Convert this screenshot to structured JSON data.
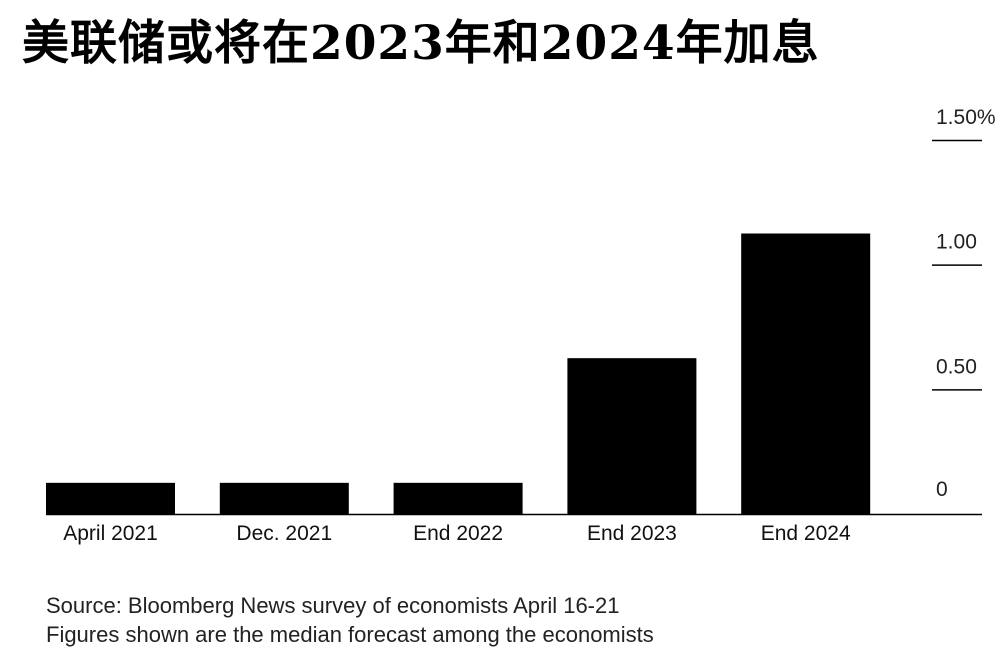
{
  "chart_data": {
    "type": "bar",
    "title": "美联储或将在2023年和2024年加息",
    "categories": [
      "April 2021",
      "Dec. 2021",
      "End 2022",
      "End 2023",
      "End 2024"
    ],
    "values": [
      0.125,
      0.125,
      0.125,
      0.625,
      1.125
    ],
    "ylim": [
      0,
      1.5
    ],
    "yticks": [
      0,
      0.5,
      1.0,
      1.5
    ],
    "ytick_labels": [
      "0",
      "0.50",
      "1.00",
      "1.50%"
    ],
    "xlabel": "",
    "ylabel": "",
    "grid": false,
    "bar_color": "#000000",
    "y_axis_position": "right"
  },
  "footnotes": {
    "source": "Source: Bloomberg News survey of economists April 16-21",
    "note": "Figures shown are the median forecast among the economists"
  }
}
